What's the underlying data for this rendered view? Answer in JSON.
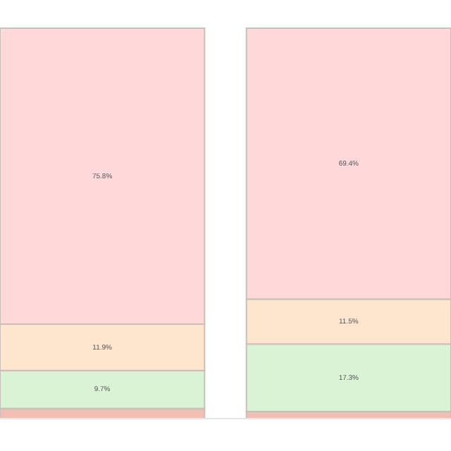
{
  "chart_data": {
    "type": "bar",
    "stacked": true,
    "categories": [
      null,
      null
    ],
    "series": [
      {
        "color": "#f2bdb3",
        "values": [
          2.6,
          1.8
        ],
        "value_labels": [
          null,
          null
        ]
      },
      {
        "color": "#d9f3d4",
        "values": [
          9.7,
          17.3
        ],
        "value_labels": [
          "9.7%",
          "17.3%"
        ]
      },
      {
        "color": "#fee5cd",
        "values": [
          11.9,
          11.5
        ],
        "value_labels": [
          "11.9%",
          "11.5%"
        ]
      },
      {
        "color": "#ffd9d9",
        "values": [
          75.8,
          69.4
        ],
        "value_labels": [
          "75.8%",
          "69.4%"
        ]
      }
    ]
  }
}
